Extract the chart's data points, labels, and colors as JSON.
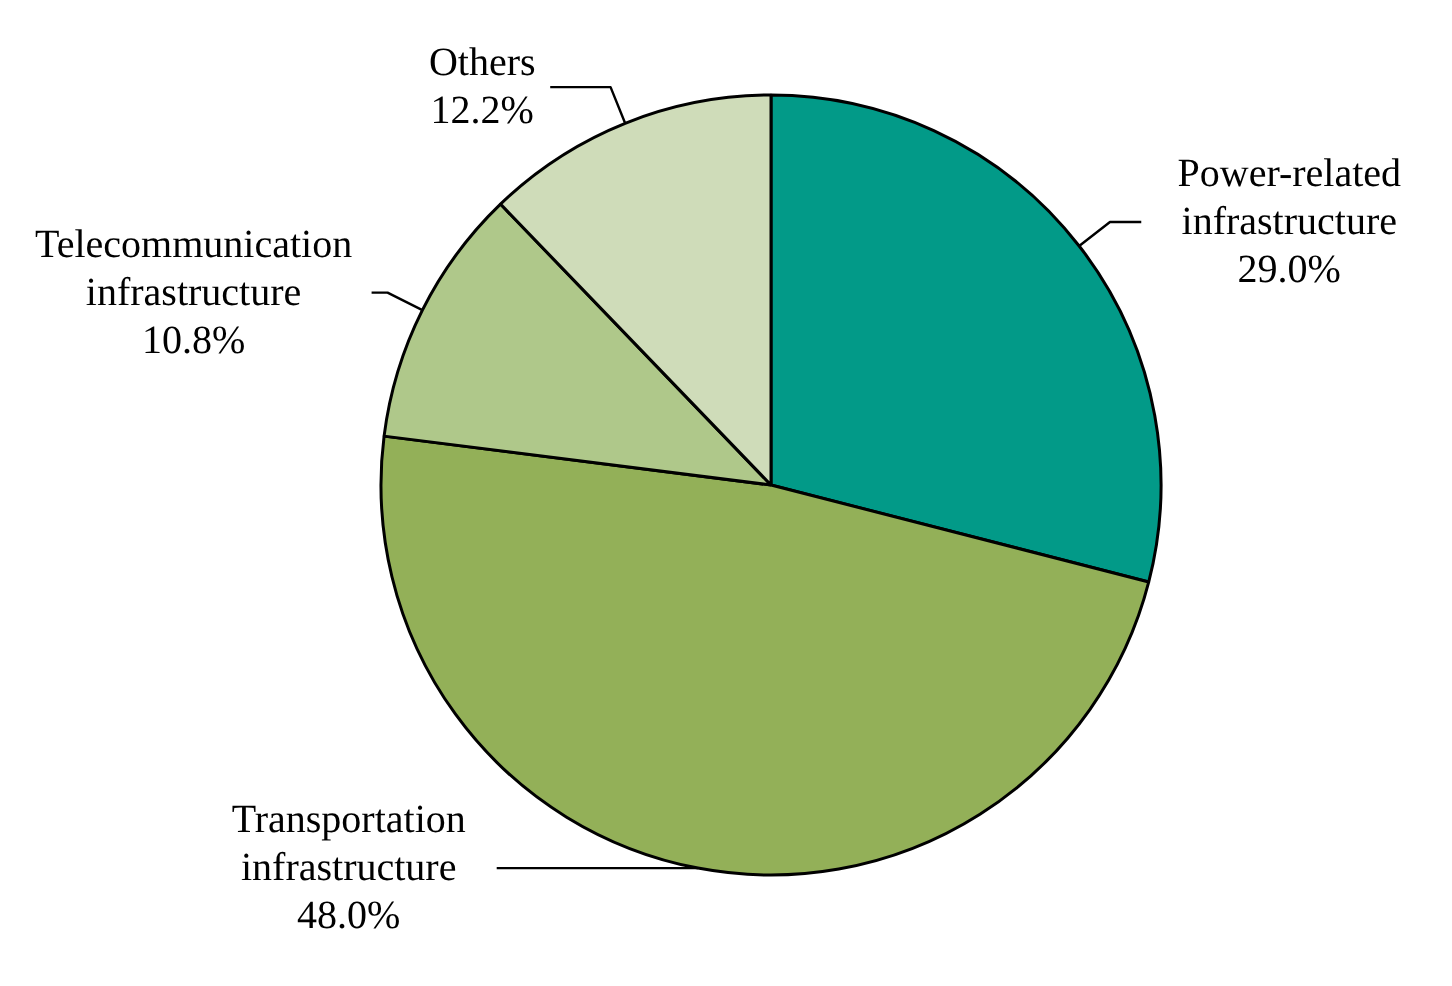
{
  "chart_data": {
    "type": "pie",
    "categories": [
      "Power-related infrastructure",
      "Transportation infrastructure",
      "Telecommunication infrastructure",
      "Others"
    ],
    "values": [
      29.0,
      48.0,
      10.8,
      12.2
    ],
    "colors": [
      "#029a88",
      "#93b058",
      "#afc88a",
      "#cfdcb9"
    ],
    "value_labels": [
      "29.0%",
      "48.0%",
      "10.8%",
      "12.2%"
    ]
  }
}
